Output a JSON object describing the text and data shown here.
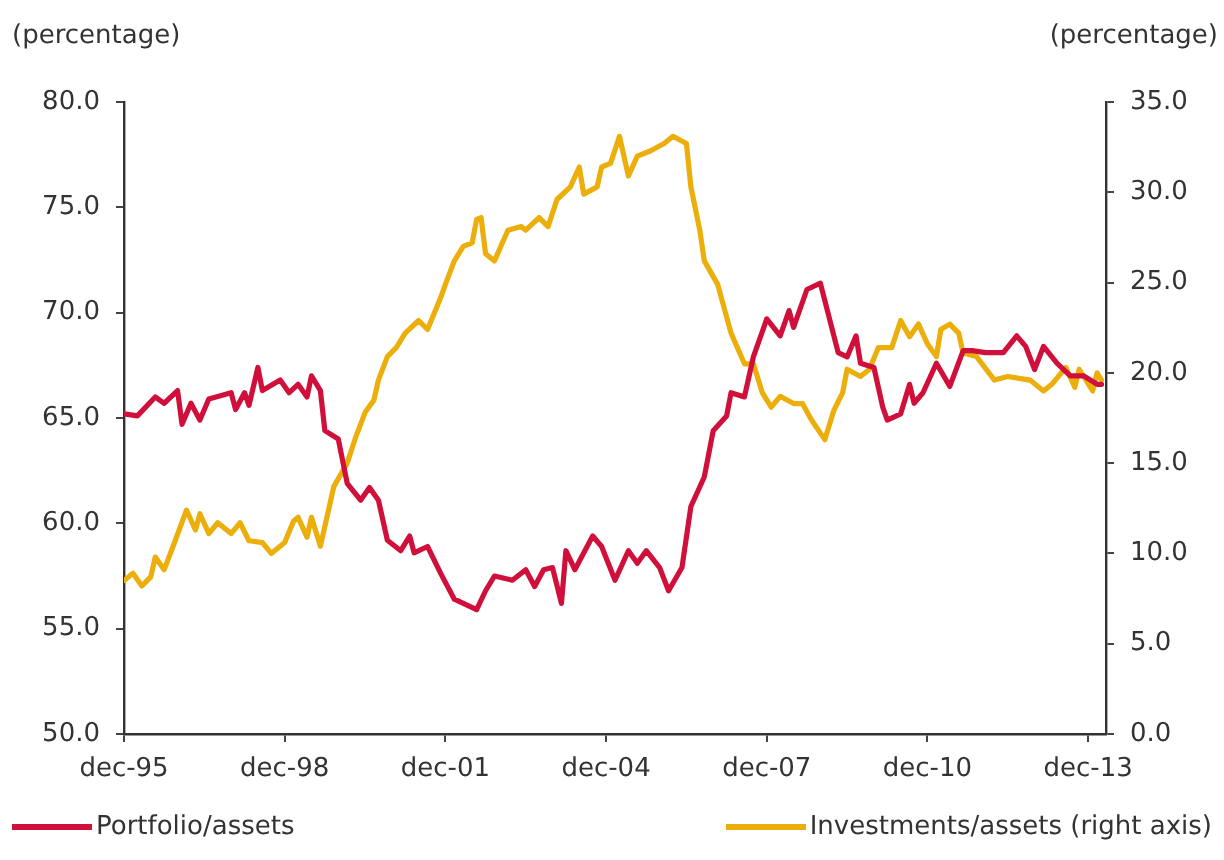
{
  "chart_data": {
    "type": "line",
    "ylabel": "(percentage)",
    "y2label": "(percentage)",
    "xlim": [
      "1995-12",
      "2014-04"
    ],
    "xticks": [
      {
        "value": "1995-12",
        "label": "dec-95"
      },
      {
        "value": "1998-12",
        "label": "dec-98"
      },
      {
        "value": "2001-12",
        "label": "dec-01"
      },
      {
        "value": "2004-12",
        "label": "dec-04"
      },
      {
        "value": "2007-12",
        "label": "dec-07"
      },
      {
        "value": "2010-12",
        "label": "dec-10"
      },
      {
        "value": "2013-12",
        "label": "dec-13"
      }
    ],
    "ylim": [
      50,
      80
    ],
    "yticks": [
      {
        "value": 50,
        "label": "50.0"
      },
      {
        "value": 55,
        "label": "55.0"
      },
      {
        "value": 60,
        "label": "60.0"
      },
      {
        "value": 65,
        "label": "65.0"
      },
      {
        "value": 70,
        "label": "70.0"
      },
      {
        "value": 75,
        "label": "75.0"
      },
      {
        "value": 80,
        "label": "80.0"
      }
    ],
    "y2lim": [
      0,
      35
    ],
    "y2ticks": [
      {
        "value": 0,
        "label": "0.0"
      },
      {
        "value": 5,
        "label": "5.0"
      },
      {
        "value": 10,
        "label": "10.0"
      },
      {
        "value": 15,
        "label": "15.0"
      },
      {
        "value": 20,
        "label": "20.0"
      },
      {
        "value": 25,
        "label": "25.0"
      },
      {
        "value": 30,
        "label": "30.0"
      },
      {
        "value": 35,
        "label": "35.0"
      }
    ],
    "grid": false,
    "legend": "bottom",
    "marker": "none",
    "line_style": "solid",
    "series": [
      {
        "name": "Portfolio/assets",
        "color": "#d0103a",
        "x": [
          "1995-12",
          "1996-03",
          "1996-07",
          "1996-09",
          "1996-12",
          "1997-01",
          "1997-03",
          "1997-05",
          "1997-07",
          "1997-12",
          "1998-01",
          "1998-03",
          "1998-04",
          "1998-06",
          "1998-07",
          "1998-11",
          "1999-01",
          "1999-03",
          "1999-05",
          "1999-06",
          "1999-08",
          "1999-09",
          "1999-12",
          "2000-02",
          "2000-05",
          "2000-07",
          "2000-09",
          "2000-11",
          "2001-02",
          "2001-04",
          "2001-05",
          "2001-08",
          "2001-11",
          "2002-02",
          "2002-07",
          "2002-09",
          "2002-11",
          "2003-03",
          "2003-06",
          "2003-08",
          "2003-10",
          "2003-12",
          "2004-02",
          "2004-03",
          "2004-05",
          "2004-09",
          "2004-11",
          "2005-02",
          "2005-05",
          "2005-07",
          "2005-09",
          "2005-12",
          "2006-02",
          "2006-05",
          "2006-07",
          "2006-10",
          "2006-12",
          "2007-03",
          "2007-04",
          "2007-07",
          "2007-09",
          "2007-12",
          "2008-03",
          "2008-05",
          "2008-06",
          "2008-09",
          "2008-12",
          "2009-04",
          "2009-06",
          "2009-08",
          "2009-09",
          "2009-12",
          "2010-02",
          "2010-03",
          "2010-06",
          "2010-08",
          "2010-09",
          "2010-11",
          "2011-02",
          "2011-05",
          "2011-08",
          "2011-10",
          "2012-01",
          "2012-05",
          "2012-08",
          "2012-10",
          "2012-12",
          "2013-02",
          "2013-05",
          "2013-08",
          "2013-11",
          "2014-02",
          "2014-03"
        ],
        "values": [
          65.2,
          65.1,
          66.0,
          65.7,
          66.3,
          64.7,
          65.7,
          64.9,
          65.9,
          66.2,
          65.4,
          66.2,
          65.6,
          67.4,
          66.3,
          66.8,
          66.2,
          66.6,
          66.0,
          67.0,
          66.3,
          64.4,
          64.0,
          61.9,
          61.1,
          61.7,
          61.1,
          59.2,
          58.7,
          59.4,
          58.6,
          58.9,
          57.6,
          56.4,
          55.9,
          56.8,
          57.5,
          57.3,
          57.8,
          57.0,
          57.8,
          57.9,
          56.2,
          58.7,
          57.8,
          59.4,
          58.9,
          57.3,
          58.7,
          58.1,
          58.7,
          57.9,
          56.8,
          57.9,
          60.8,
          62.2,
          64.4,
          65.1,
          66.2,
          66.0,
          67.9,
          69.7,
          68.9,
          70.1,
          69.3,
          71.1,
          71.4,
          68.1,
          67.9,
          68.9,
          67.6,
          67.4,
          65.5,
          64.9,
          65.2,
          66.6,
          65.7,
          66.2,
          67.6,
          66.5,
          68.2,
          68.2,
          68.1,
          68.1,
          68.9,
          68.4,
          67.3,
          68.4,
          67.6,
          67.0,
          67.0,
          66.6,
          66.6
        ]
      },
      {
        "name": "Investments/assets (right axis)",
        "color": "#ecae0b",
        "axis": "y2",
        "x": [
          "1995-12",
          "1996-02",
          "1996-04",
          "1996-06",
          "1996-07",
          "1996-09",
          "1996-11",
          "1997-02",
          "1997-04",
          "1997-05",
          "1997-07",
          "1997-09",
          "1997-12",
          "1998-02",
          "1998-04",
          "1998-07",
          "1998-09",
          "1998-12",
          "1999-02",
          "1999-03",
          "1999-05",
          "1999-06",
          "1999-08",
          "1999-11",
          "2000-02",
          "2000-04",
          "2000-06",
          "2000-08",
          "2000-09",
          "2000-11",
          "2001-01",
          "2001-03",
          "2001-06",
          "2001-08",
          "2001-11",
          "2001-12",
          "2002-02",
          "2002-04",
          "2002-06",
          "2002-07",
          "2002-08",
          "2002-09",
          "2002-11",
          "2003-02",
          "2003-05",
          "2003-06",
          "2003-09",
          "2003-11",
          "2004-01",
          "2004-04",
          "2004-06",
          "2004-07",
          "2004-10",
          "2004-11",
          "2005-01",
          "2005-03",
          "2005-05",
          "2005-07",
          "2005-10",
          "2006-01",
          "2006-03",
          "2006-06",
          "2006-07",
          "2006-09",
          "2006-10",
          "2007-01",
          "2007-02",
          "2007-04",
          "2007-07",
          "2007-09",
          "2007-11",
          "2008-01",
          "2008-03",
          "2008-06",
          "2008-08",
          "2008-10",
          "2009-01",
          "2009-03",
          "2009-05",
          "2009-06",
          "2009-09",
          "2009-11",
          "2010-01",
          "2010-04",
          "2010-06",
          "2010-08",
          "2010-10",
          "2010-12",
          "2011-02",
          "2011-03",
          "2011-05",
          "2011-07",
          "2011-08",
          "2011-11",
          "2012-03",
          "2012-06",
          "2012-11",
          "2013-02",
          "2013-04",
          "2013-07",
          "2013-09",
          "2013-10",
          "2014-01",
          "2014-02",
          "2014-03"
        ],
        "values": [
          8.5,
          8.9,
          8.2,
          8.7,
          9.8,
          9.1,
          10.4,
          12.4,
          11.3,
          12.2,
          11.1,
          11.7,
          11.1,
          11.7,
          10.7,
          10.6,
          10.0,
          10.6,
          11.8,
          12.0,
          10.9,
          12.0,
          10.4,
          13.7,
          15.0,
          16.5,
          17.8,
          18.5,
          19.6,
          20.9,
          21.4,
          22.2,
          22.9,
          22.4,
          24.2,
          24.9,
          26.2,
          27.0,
          27.2,
          28.5,
          28.6,
          26.6,
          26.2,
          27.9,
          28.1,
          27.9,
          28.6,
          28.1,
          29.6,
          30.3,
          31.4,
          29.9,
          30.3,
          31.4,
          31.6,
          33.1,
          30.9,
          32.0,
          32.3,
          32.7,
          33.1,
          32.7,
          30.3,
          27.9,
          26.2,
          24.9,
          24.0,
          22.2,
          20.5,
          20.5,
          18.9,
          18.1,
          18.7,
          18.3,
          18.3,
          17.4,
          16.3,
          17.9,
          18.9,
          20.2,
          19.8,
          20.2,
          21.4,
          21.4,
          22.9,
          22.0,
          22.7,
          21.6,
          20.9,
          22.4,
          22.7,
          22.2,
          21.1,
          20.9,
          19.6,
          19.8,
          19.6,
          19.0,
          19.4,
          20.3,
          19.2,
          20.2,
          19.0,
          20.0,
          19.6
        ]
      }
    ]
  }
}
